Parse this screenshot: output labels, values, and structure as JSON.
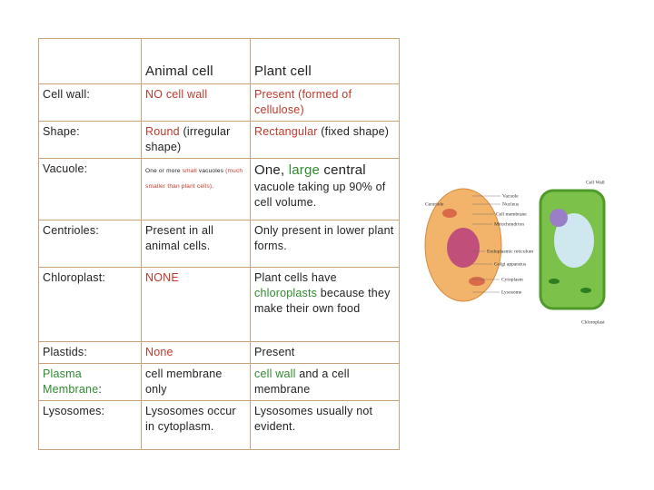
{
  "table": {
    "header": [
      "Animal cell",
      "Plant cell"
    ],
    "rows": [
      {
        "label": [
          {
            "text": "Cell wall:"
          }
        ],
        "animal": [
          {
            "text": "NO cell wall",
            "color": "red"
          }
        ],
        "plant": [
          {
            "text": "Present (formed of cellulose)",
            "color": "red"
          }
        ]
      },
      {
        "label": [
          {
            "text": "Shape:"
          }
        ],
        "animal": [
          {
            "text": "Round",
            "color": "red"
          },
          {
            "text": " (irregular shape)"
          }
        ],
        "plant": [
          {
            "text": "Rectangular",
            "color": "red"
          },
          {
            "text": " (fixed shape)"
          }
        ]
      },
      {
        "label": [
          {
            "text": "Vacuole:"
          }
        ],
        "animal": [
          {
            "text": "One or more ",
            "size": "small"
          },
          {
            "text": "small",
            "color": "red",
            "size": "small"
          },
          {
            "text": " vacuoles ",
            "size": "small"
          },
          {
            "text": "(much smaller than plant cells).",
            "color": "red",
            "size": "small"
          }
        ],
        "plant": [
          {
            "text": "One, ",
            "size": "large"
          },
          {
            "text": "large",
            "color": "green",
            "size": "large"
          },
          {
            "text": " central",
            "size": "large"
          },
          {
            "text": " vacuole taking up 90% of cell volume."
          }
        ]
      },
      {
        "label": [
          {
            "text": "Centrioles:"
          }
        ],
        "animal": [
          {
            "text": "Present in all animal cells."
          }
        ],
        "plant": [
          {
            "text": "Only present in lower plant forms."
          }
        ]
      },
      {
        "label": [
          {
            "text": "Chloroplast:"
          }
        ],
        "animal": [
          {
            "text": "NONE",
            "color": "red"
          }
        ],
        "plant": [
          {
            "text": "Plant cells have "
          },
          {
            "text": "chloroplasts",
            "color": "green"
          },
          {
            "text": " because they make their own food"
          }
        ]
      },
      {
        "label": [
          {
            "text": "Plastids:"
          }
        ],
        "animal": [
          {
            "text": "None",
            "color": "red"
          }
        ],
        "plant": [
          {
            "text": "Present"
          }
        ]
      },
      {
        "label": [
          {
            "text": "Plasma Membrane",
            "color": "green"
          },
          {
            "text": ":"
          }
        ],
        "animal": [
          {
            "text": "cell membrane only"
          }
        ],
        "plant": [
          {
            "text": "cell wall",
            "color": "green"
          },
          {
            "text": " and a cell membrane"
          }
        ]
      },
      {
        "label": [
          {
            "text": "Lysosomes:"
          }
        ],
        "animal": [
          {
            "text": "Lysosomes occur in cytoplasm."
          }
        ],
        "plant": [
          {
            "text": "Lysosomes usually not evident."
          }
        ]
      }
    ]
  },
  "diagram": {
    "labels": [
      "Centriole",
      "Vacuole",
      "Nucleus",
      "Cell membrane",
      "Mitochondrion",
      "Endoplasmic reticulum",
      "Golgi apparatus",
      "Cytoplasm",
      "Lysosome",
      "Cell Wall",
      "Chloroplast"
    ]
  }
}
